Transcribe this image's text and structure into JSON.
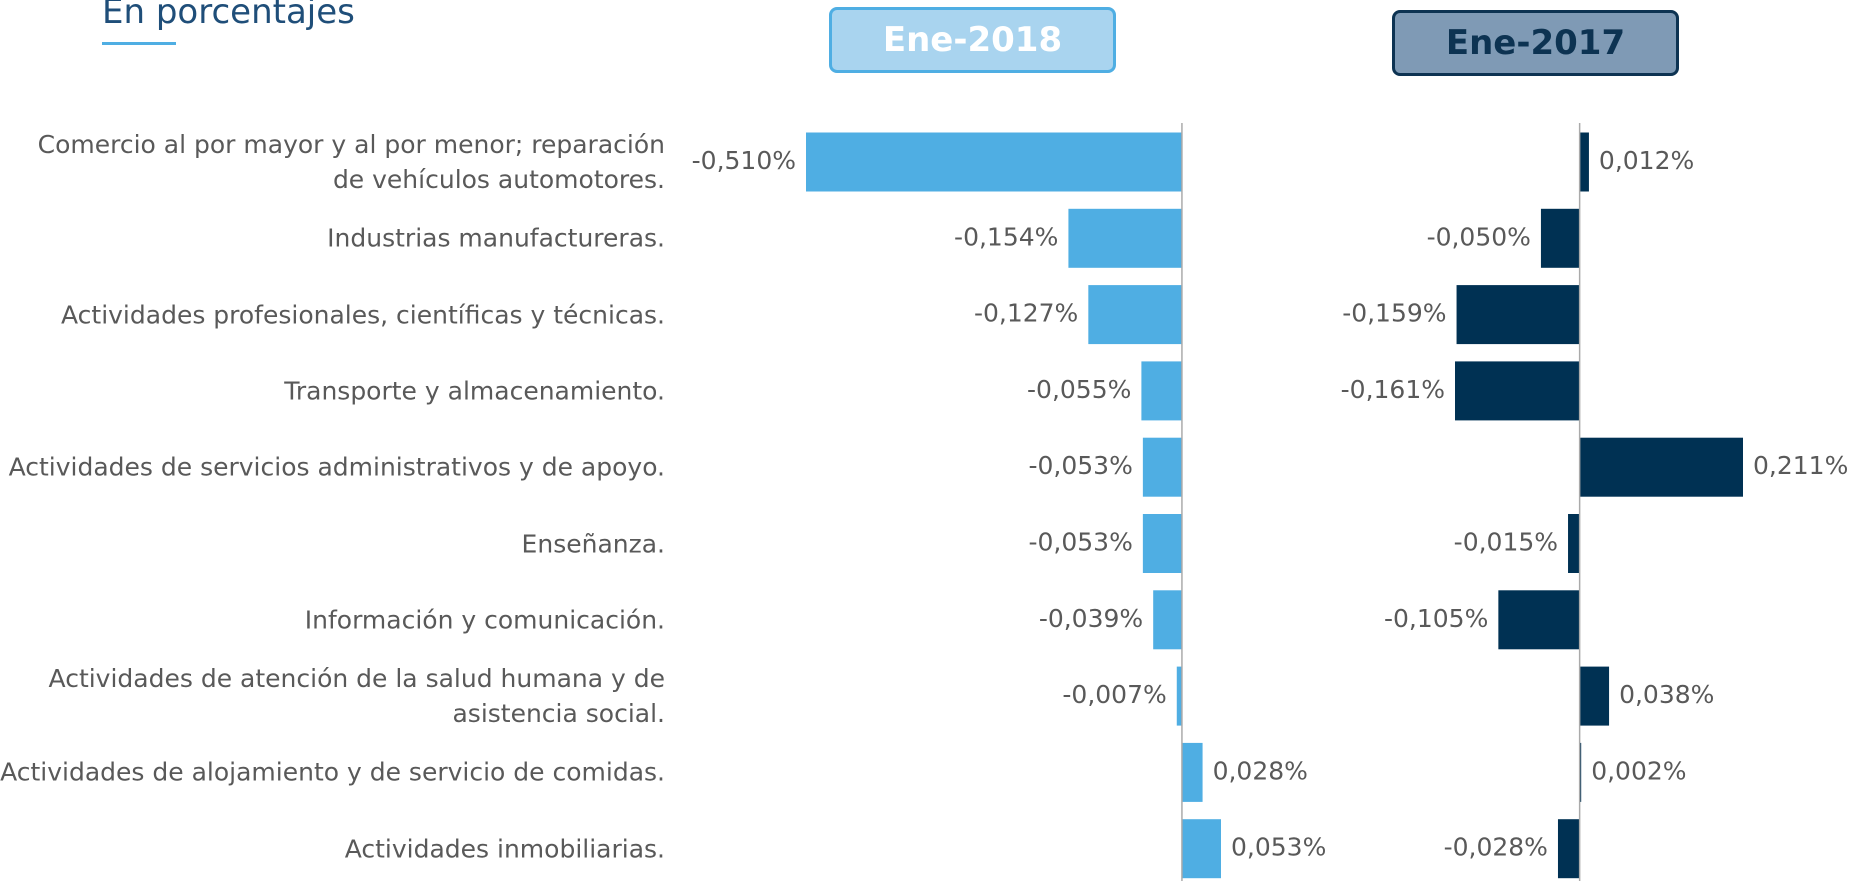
{
  "subtitle": "En porcentajes",
  "chart_data": [
    {
      "type": "bar",
      "title": "Ene-2018",
      "orientation": "horizontal",
      "color": "#4faee3",
      "categories": [
        "Comercio al por mayor y al por menor; reparación de vehículos automotores.",
        "Industrias manufactureras.",
        "Actividades profesionales, científicas y técnicas.",
        "Transporte y almacenamiento.",
        "Actividades de servicios administrativos y de apoyo.",
        "Enseñanza.",
        "Información y comunicación.",
        "Actividades de atención de la salud humana y de asistencia social.",
        "Actividades de alojamiento y de servicio de comidas.",
        "Actividades inmobiliarias."
      ],
      "values": [
        -0.51,
        -0.154,
        -0.127,
        -0.055,
        -0.053,
        -0.053,
        -0.039,
        -0.007,
        0.028,
        0.053
      ],
      "value_labels": [
        "-0,510%",
        "-0,154%",
        "-0,127%",
        "-0,055%",
        "-0,053%",
        "-0,053%",
        "-0,039%",
        "-0,007%",
        "0,028%",
        "0,053%"
      ],
      "xlim": [
        -0.51,
        0.053
      ]
    },
    {
      "type": "bar",
      "title": "Ene-2017",
      "orientation": "horizontal",
      "color": "#003153",
      "values": [
        0.012,
        -0.05,
        -0.159,
        -0.161,
        0.211,
        -0.015,
        -0.105,
        0.038,
        0.002,
        -0.028
      ],
      "value_labels": [
        "0,012%",
        "-0,050%",
        "-0,159%",
        "-0,161%",
        "0,211%",
        "-0,015%",
        "-0,105%",
        "0,038%",
        "0,002%",
        "-0,028%"
      ],
      "xlim": [
        -0.161,
        0.211
      ]
    }
  ]
}
